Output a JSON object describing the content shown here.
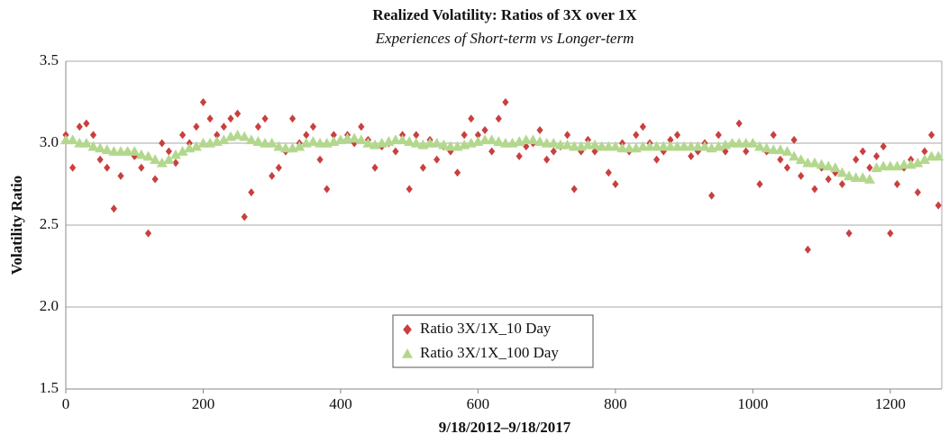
{
  "chart_data": {
    "type": "scatter",
    "title": "Realized Volatility: Ratios of 3X over 1X",
    "subtitle": "Experiences of Short-term vs Longer-term",
    "y_label": "Volatility Ratio",
    "x_label": "9/18/2012–9/18/2017",
    "x": [
      0,
      10,
      20,
      30,
      40,
      50,
      60,
      70,
      80,
      90,
      100,
      110,
      120,
      130,
      140,
      150,
      160,
      170,
      180,
      190,
      200,
      210,
      220,
      230,
      240,
      250,
      260,
      270,
      280,
      290,
      300,
      310,
      320,
      330,
      340,
      350,
      360,
      370,
      380,
      390,
      400,
      410,
      420,
      430,
      440,
      450,
      460,
      470,
      480,
      490,
      500,
      510,
      520,
      530,
      540,
      550,
      560,
      570,
      580,
      590,
      600,
      610,
      620,
      630,
      640,
      650,
      660,
      670,
      680,
      690,
      700,
      710,
      720,
      730,
      740,
      750,
      760,
      770,
      780,
      790,
      800,
      810,
      820,
      830,
      840,
      850,
      860,
      870,
      880,
      890,
      900,
      910,
      920,
      930,
      940,
      950,
      960,
      970,
      980,
      990,
      1000,
      1010,
      1020,
      1030,
      1040,
      1050,
      1060,
      1070,
      1080,
      1090,
      1100,
      1110,
      1120,
      1130,
      1140,
      1150,
      1160,
      1170,
      1180,
      1190,
      1200,
      1210,
      1220,
      1230,
      1240,
      1250,
      1260,
      1270
    ],
    "series": [
      {
        "name": "Ratio 3X/1X_10 Day",
        "color": "#c8403e",
        "marker": "diamond",
        "values": [
          3.05,
          2.85,
          3.1,
          3.12,
          3.05,
          2.9,
          2.85,
          2.6,
          2.8,
          2.95,
          2.92,
          2.85,
          2.45,
          2.78,
          3.0,
          2.95,
          2.88,
          3.05,
          3.0,
          3.1,
          3.25,
          3.15,
          3.05,
          3.1,
          3.15,
          3.18,
          2.55,
          2.7,
          3.1,
          3.15,
          2.8,
          2.85,
          2.95,
          3.15,
          3.0,
          3.05,
          3.1,
          2.9,
          2.72,
          3.05,
          3.02,
          3.05,
          3.0,
          3.1,
          3.02,
          2.85,
          2.98,
          3.0,
          2.95,
          3.05,
          2.72,
          3.05,
          2.85,
          3.02,
          2.9,
          2.98,
          2.95,
          2.82,
          3.05,
          3.15,
          3.05,
          3.08,
          2.95,
          3.15,
          3.25,
          3.0,
          2.92,
          2.98,
          3.0,
          3.08,
          2.9,
          2.95,
          2.98,
          3.05,
          2.72,
          2.95,
          3.02,
          2.95,
          2.98,
          2.82,
          2.75,
          3.0,
          2.95,
          3.05,
          3.1,
          3.0,
          2.9,
          2.95,
          3.02,
          3.05,
          2.98,
          2.92,
          2.95,
          3.0,
          2.68,
          3.05,
          2.95,
          3.0,
          3.12,
          2.95,
          3.0,
          2.75,
          2.95,
          3.05,
          2.9,
          2.85,
          3.02,
          2.8,
          2.35,
          2.72,
          2.85,
          2.78,
          2.82,
          2.75,
          2.45,
          2.9,
          2.95,
          2.85,
          2.92,
          2.98,
          2.45,
          2.75,
          2.85,
          2.9,
          2.7,
          2.95,
          3.05,
          2.62
        ]
      },
      {
        "name": "Ratio 3X/1X_100 Day",
        "color": "#b3d88d",
        "marker": "triangle",
        "values": [
          3.02,
          3.02,
          3.0,
          3.0,
          2.98,
          2.97,
          2.96,
          2.95,
          2.95,
          2.95,
          2.95,
          2.93,
          2.92,
          2.9,
          2.88,
          2.9,
          2.93,
          2.95,
          2.97,
          2.98,
          3.0,
          3.0,
          3.01,
          3.02,
          3.04,
          3.05,
          3.04,
          3.02,
          3.01,
          3.0,
          3.0,
          2.98,
          2.97,
          2.97,
          2.98,
          3.0,
          3.01,
          3.0,
          3.0,
          3.01,
          3.02,
          3.03,
          3.03,
          3.02,
          3.0,
          2.99,
          3.0,
          3.01,
          3.02,
          3.02,
          3.01,
          3.0,
          2.99,
          3.0,
          3.0,
          2.99,
          2.98,
          2.98,
          2.99,
          3.0,
          3.01,
          3.02,
          3.02,
          3.01,
          3.0,
          3.0,
          3.01,
          3.02,
          3.02,
          3.01,
          3.0,
          3.0,
          2.99,
          2.99,
          2.98,
          2.98,
          2.99,
          2.99,
          2.98,
          2.98,
          2.98,
          2.97,
          2.97,
          2.97,
          2.98,
          2.98,
          2.98,
          2.98,
          2.98,
          2.98,
          2.98,
          2.98,
          2.98,
          2.98,
          2.97,
          2.98,
          2.99,
          3.0,
          3.0,
          3.0,
          3.0,
          2.98,
          2.97,
          2.96,
          2.96,
          2.95,
          2.92,
          2.9,
          2.88,
          2.88,
          2.87,
          2.86,
          2.85,
          2.82,
          2.8,
          2.79,
          2.79,
          2.78,
          2.85,
          2.86,
          2.86,
          2.86,
          2.87,
          2.87,
          2.88,
          2.9,
          2.92,
          2.92
        ]
      }
    ],
    "xlim": [
      0,
      1275
    ],
    "xticks": [
      0,
      200,
      400,
      600,
      800,
      1000,
      1200
    ],
    "ylim": [
      1.5,
      3.5
    ],
    "yticks": [
      1.5,
      {
        "value": 2,
        "label": "2.0"
      },
      2.5,
      {
        "value": 3,
        "label": "3.0"
      },
      3.5
    ],
    "grid": true,
    "legend": "bottom-center"
  }
}
